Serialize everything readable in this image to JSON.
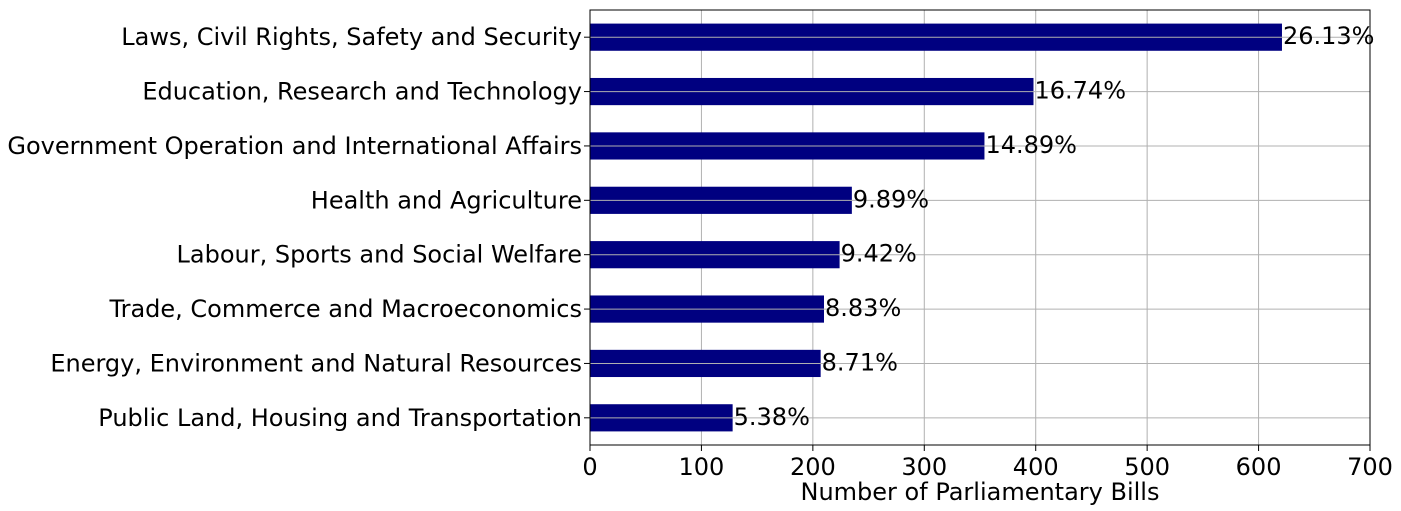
{
  "chart_data": {
    "type": "bar",
    "orientation": "horizontal",
    "categories": [
      "Laws, Civil Rights, Safety and Security",
      "Education, Research and Technology",
      "Government Operation and International Affairs",
      "Health and Agriculture",
      "Labour, Sports and Social Welfare",
      "Trade, Commerce and Macroeconomics",
      "Energy, Environment and Natural Resources",
      "Public Land, Housing and Transportation"
    ],
    "values": [
      621,
      398,
      354,
      235,
      224,
      210,
      207,
      128
    ],
    "data_labels": [
      "26.13%",
      "16.74%",
      "14.89%",
      "9.89%",
      "9.42%",
      "8.83%",
      "8.71%",
      "5.38%"
    ],
    "title": "",
    "xlabel": "Number of Parliamentary Bills",
    "ylabel": "",
    "xlim": [
      0,
      700
    ],
    "xticks": [
      0,
      100,
      200,
      300,
      400,
      500,
      600,
      700
    ],
    "grid": true,
    "bar_color": "#000080",
    "grid_color": "#b0b0b0"
  }
}
